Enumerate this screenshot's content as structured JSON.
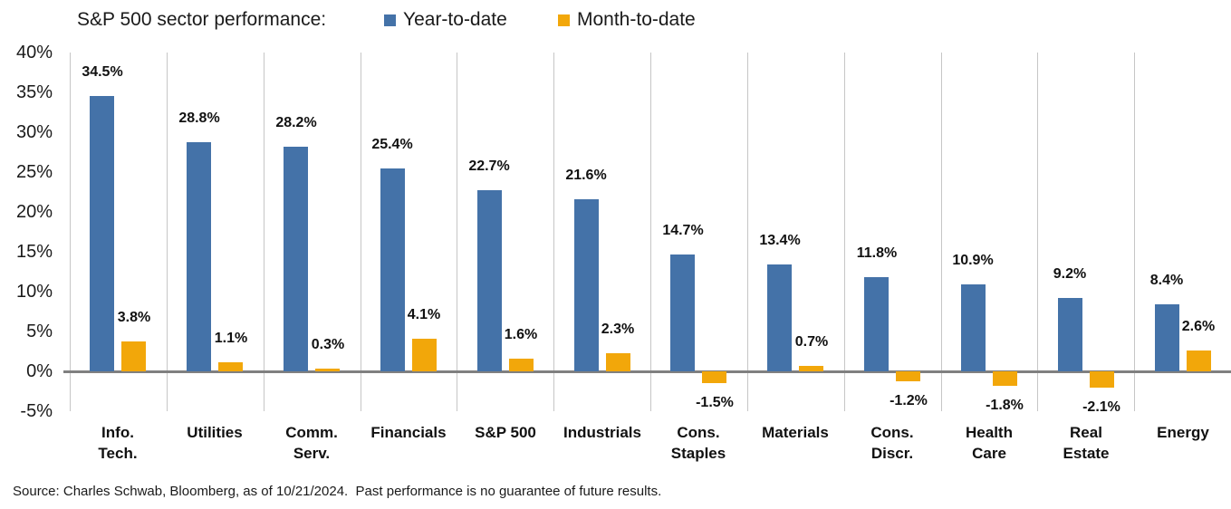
{
  "title": "S&P 500 sector performance:",
  "legend": [
    {
      "label": "Year-to-date",
      "color": "#4472A8"
    },
    {
      "label": "Month-to-date",
      "color": "#F2A70A"
    }
  ],
  "chart_data": {
    "type": "bar",
    "title": "S&P 500 sector performance:",
    "categories": [
      "Info.\nTech.",
      "Utilities",
      "Comm.\nServ.",
      "Financials",
      "S&P 500",
      "Industrials",
      "Cons.\nStaples",
      "Materials",
      "Cons.\nDiscr.",
      "Health\nCare",
      "Real\nEstate",
      "Energy"
    ],
    "series": [
      {
        "name": "Year-to-date",
        "color": "#4472A8",
        "values": [
          34.5,
          28.8,
          28.2,
          25.4,
          22.7,
          21.6,
          14.7,
          13.4,
          11.8,
          10.9,
          9.2,
          8.4
        ]
      },
      {
        "name": "Month-to-date",
        "color": "#F2A70A",
        "values": [
          3.8,
          1.1,
          0.3,
          4.1,
          1.6,
          2.3,
          -1.5,
          0.7,
          -1.2,
          -1.8,
          -2.1,
          2.6
        ]
      }
    ],
    "y_ticks": [
      "40%",
      "35%",
      "30%",
      "25%",
      "20%",
      "15%",
      "10%",
      "5%",
      "0%",
      "-5%"
    ],
    "ylim": [
      -5,
      40
    ],
    "grid": "vertical-only",
    "legend_position": "top",
    "colors": {
      "gridline": "#C6C6C6",
      "zero_line": "#808080"
    }
  },
  "source": "Source: Charles Schwab, Bloomberg, as of 10/21/2024.  Past performance is no guarantee of future results."
}
